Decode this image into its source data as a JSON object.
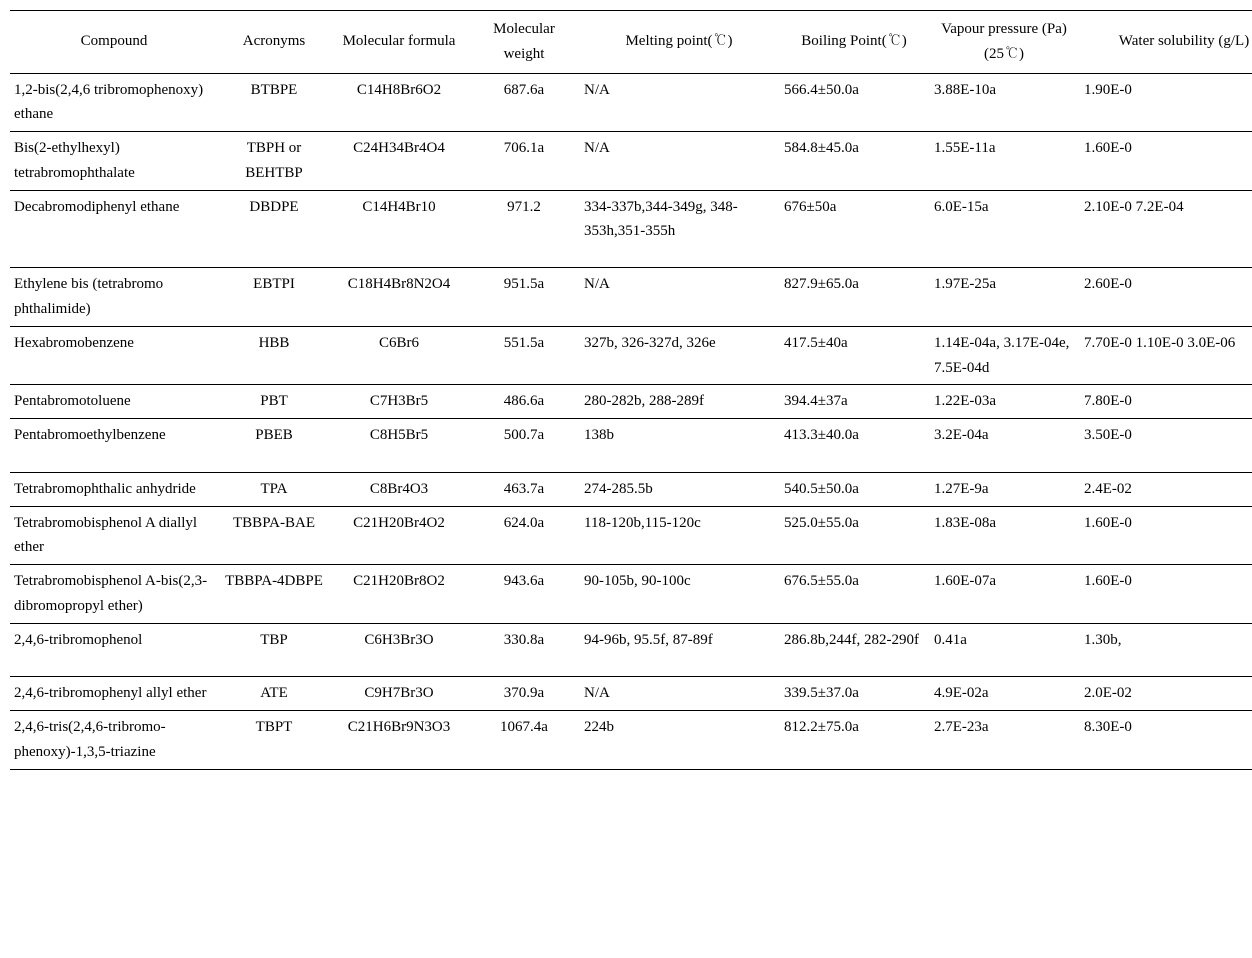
{
  "columns": [
    {
      "key": "compound",
      "label": "Compound",
      "class": "col-compound"
    },
    {
      "key": "acronyms",
      "label": "Acronyms",
      "class": "col-acronyms"
    },
    {
      "key": "formula",
      "label": "Molecular formula",
      "class": "col-formula"
    },
    {
      "key": "weight",
      "label": "Molecular weight",
      "class": "col-weight"
    },
    {
      "key": "mp",
      "label": "Melting point(℃)",
      "class": "col-mp"
    },
    {
      "key": "bp",
      "label": "Boiling Point(℃)",
      "class": "col-bp"
    },
    {
      "key": "vp",
      "label": "Vapour pressure (Pa)(25℃)",
      "class": "col-vp"
    },
    {
      "key": "ws",
      "label": "Water solubility (g/L)",
      "class": "col-ws"
    }
  ],
  "rows": [
    {
      "compound": "1,2-bis(2,4,6 tribromophenoxy) ethane",
      "acronyms": "BTBPE",
      "formula": "C14H8Br6O2",
      "weight": "687.6a",
      "mp": "N/A",
      "bp": "566.4±50.0a",
      "vp": "3.88E-10a",
      "ws": "1.90E-0"
    },
    {
      "compound": "Bis(2-ethylhexyl) tetrabromophthalate",
      "acronyms": "TBPH or BEHTBP",
      "formula": "C24H34Br4O4",
      "weight": "706.1a",
      "mp": "N/A",
      "bp": "584.8±45.0a",
      "vp": "1.55E-11a",
      "ws": "1.60E-0"
    },
    {
      "compound": "Decabromodiphenyl ethane",
      "acronyms": "DBDPE",
      "formula": "C14H4Br10",
      "weight": "971.2",
      "mp": "334-337b,344-349g, 348-353h,351-355h",
      "bp": "676±50a",
      "vp": "6.0E-15a",
      "ws": "2.10E-0 7.2E-04",
      "extra": true
    },
    {
      "compound": "Ethylene bis (tetrabromo phthalimide)",
      "acronyms": "EBTPI",
      "formula": "C18H4Br8N2O4",
      "weight": "951.5a",
      "mp": "N/A",
      "bp": "827.9±65.0a",
      "vp": "1.97E-25a",
      "ws": "2.60E-0"
    },
    {
      "compound": "Hexabromobenzene",
      "acronyms": "HBB",
      "formula": "C6Br6",
      "weight": "551.5a",
      "mp": "327b, 326-327d, 326e",
      "bp": "417.5±40a",
      "vp": "1.14E-04a, 3.17E-04e, 7.5E-04d",
      "ws": "7.70E-0 1.10E-0 3.0E-06"
    },
    {
      "compound": "Pentabromotoluene",
      "acronyms": "PBT",
      "formula": "C7H3Br5",
      "weight": "486.6a",
      "mp": "280-282b, 288-289f",
      "bp": "394.4±37a",
      "vp": "1.22E-03a",
      "ws": "7.80E-0"
    },
    {
      "compound": "Pentabromoethylbenzene",
      "acronyms": "PBEB",
      "formula": "C8H5Br5",
      "weight": "500.7a",
      "mp": "138b",
      "bp": "413.3±40.0a",
      "vp": "3.2E-04a",
      "ws": "3.50E-0",
      "extra2": true
    },
    {
      "compound": "Tetrabromophthalic anhydride",
      "acronyms": "TPA",
      "formula": "C8Br4O3",
      "weight": "463.7a",
      "mp": "274-285.5b",
      "bp": "540.5±50.0a",
      "vp": "1.27E-9a",
      "ws": "2.4E-02"
    },
    {
      "compound": "Tetrabromobisphenol A diallyl ether",
      "acronyms": "TBBPA-BAE",
      "formula": "C21H20Br4O2",
      "weight": "624.0a",
      "mp": "118-120b,115-120c",
      "bp": "525.0±55.0a",
      "vp": "1.83E-08a",
      "ws": "1.60E-0"
    },
    {
      "compound": "Tetrabromobisphenol A-bis(2,3-dibromopropyl ether)",
      "acronyms": "TBBPA-4DBPE",
      "formula": "C21H20Br8O2",
      "weight": "943.6a",
      "mp": "90-105b, 90-100c",
      "bp": "676.5±55.0a",
      "vp": "1.60E-07a",
      "ws": "1.60E-0"
    },
    {
      "compound": "2,4,6-tribromophenol",
      "acronyms": "TBP",
      "formula": "C6H3Br3O",
      "weight": "330.8a",
      "mp": "94-96b, 95.5f, 87-89f",
      "bp": "286.8b,244f, 282-290f",
      "vp": "0.41a",
      "ws": "1.30b,",
      "extra2": true
    },
    {
      "compound": "2,4,6-tribromophenyl allyl ether",
      "acronyms": "ATE",
      "formula": "C9H7Br3O",
      "weight": "370.9a",
      "mp": "N/A",
      "bp": "339.5±37.0a",
      "vp": "4.9E-02a",
      "ws": "2.0E-02"
    },
    {
      "compound": "2,4,6-tris(2,4,6-tribromo-phenoxy)-1,3,5-triazine",
      "acronyms": "TBPT",
      "formula": "C21H6Br9N3O3",
      "weight": "1067.4a",
      "mp": "224b",
      "bp": "812.2±75.0a",
      "vp": "2.7E-23a",
      "ws": "8.30E-0"
    }
  ]
}
